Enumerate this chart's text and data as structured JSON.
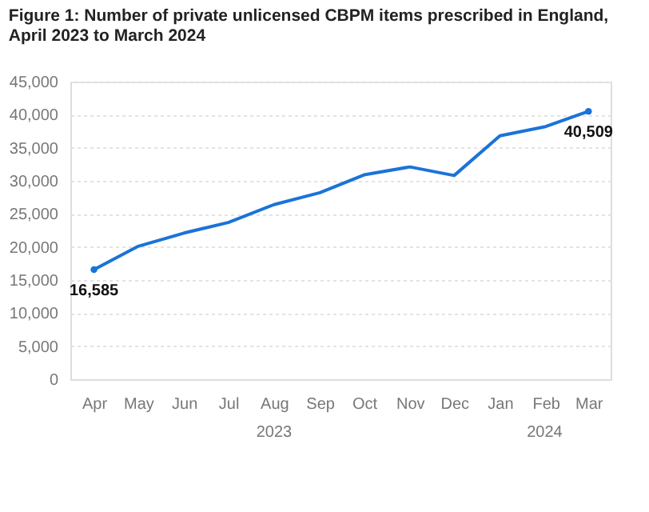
{
  "chart_data": {
    "type": "line",
    "title": "Figure 1: Number of private unlicensed CBPM items prescribed in England, April 2023 to March 2024",
    "x": [
      "2023-04",
      "2023-05",
      "2023-06",
      "2023-07",
      "2023-08",
      "2023-09",
      "2023-10",
      "2023-11",
      "2023-12",
      "2024-01",
      "2024-02",
      "2024-03"
    ],
    "series": [
      {
        "color": "#1a73d9",
        "values": [
          16585,
          20100,
          22100,
          23700,
          26400,
          28200,
          30900,
          32100,
          30800,
          36800,
          38200,
          40509
        ],
        "value_labels": [
          "16,585",
          null,
          null,
          null,
          null,
          null,
          null,
          null,
          null,
          null,
          null,
          "40,509"
        ]
      }
    ],
    "xlim": [
      "2023-03-16",
      "2024-03-16"
    ],
    "xticks": [
      {
        "value": "2023-04",
        "label": "Apr"
      },
      {
        "value": "2023-05",
        "label": "May"
      },
      {
        "value": "2023-06",
        "label": "Jun"
      },
      {
        "value": "2023-07",
        "label": "Jul"
      },
      {
        "value": "2023-08",
        "label": "Aug"
      },
      {
        "value": "2023-09",
        "label": "Sep"
      },
      {
        "value": "2023-10",
        "label": "Oct"
      },
      {
        "value": "2023-11",
        "label": "Nov"
      },
      {
        "value": "2023-12",
        "label": "Dec"
      },
      {
        "value": "2024-01",
        "label": "Jan"
      },
      {
        "value": "2024-02",
        "label": "Feb"
      },
      {
        "value": "2024-03",
        "label": "Mar"
      }
    ],
    "ylim": [
      0,
      45000
    ],
    "yticks": [
      0,
      {
        "value": 5000,
        "label": "5,000"
      },
      {
        "value": 10000,
        "label": "10,000"
      },
      {
        "value": 15000,
        "label": "15,000"
      },
      {
        "value": 20000,
        "label": "20,000"
      },
      {
        "value": 25000,
        "label": "25,000"
      },
      {
        "value": 30000,
        "label": "30,000"
      },
      {
        "value": 35000,
        "label": "35,000"
      },
      {
        "value": 40000,
        "label": "40,000"
      },
      {
        "value": 45000,
        "label": "45,000"
      }
    ],
    "annotations": [
      "2023",
      "2024"
    ],
    "grid": "y"
  }
}
